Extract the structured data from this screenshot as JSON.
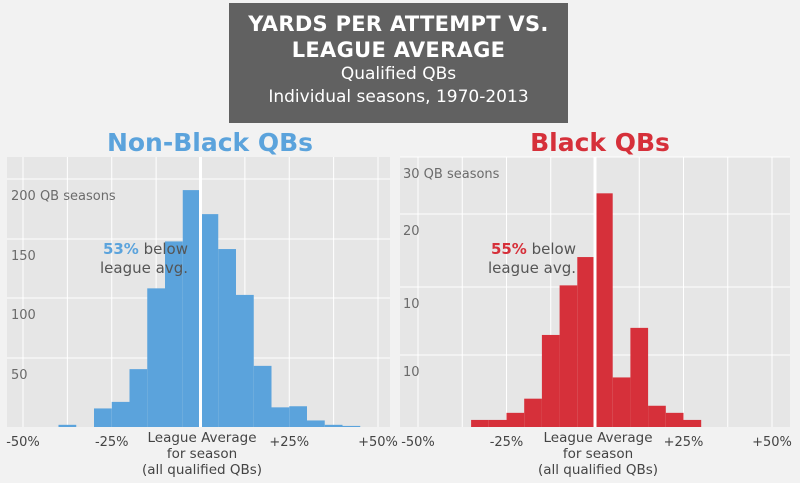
{
  "title": {
    "line1": "YARDS PER ATTEMPT VS.",
    "line2": "LEAGUE AVERAGE",
    "subtitle1": "Qualified QBs",
    "subtitle2": "Individual seasons, 1970-2013"
  },
  "center_label": {
    "line1": "League Average",
    "line2": "for season",
    "line3": "(all qualified QBs)"
  },
  "colors": {
    "blue": "#5ba3dc",
    "red": "#d6303a",
    "panel_bg": "#e6e6e6",
    "grid": "#ffffff"
  },
  "chart_data": [
    {
      "type": "bar",
      "title": "Non-Black QBs",
      "color": "#5ba3dc",
      "annotation": {
        "pct": "53%",
        "text1": "below",
        "text2": "league avg."
      },
      "xlim": [
        -50,
        50
      ],
      "x_ticks": [
        "-50%",
        "-25%",
        "+25%",
        "+50%"
      ],
      "y_ticks": [
        "200 QB seasons",
        "150",
        "100",
        "50"
      ],
      "bin_width": 5,
      "bins": [
        -40,
        -35,
        -30,
        -25,
        -20,
        -15,
        -10,
        -5,
        0,
        5,
        10,
        15,
        20,
        25,
        30,
        35,
        40
      ],
      "values": [
        2,
        0,
        17,
        23,
        53,
        127,
        170,
        217,
        195,
        163,
        121,
        56,
        18,
        19,
        6,
        2,
        1
      ],
      "ylim": [
        0,
        240
      ]
    },
    {
      "type": "bar",
      "title": "Black QBs",
      "color": "#d6303a",
      "annotation": {
        "pct": "55%",
        "text1": "below",
        "text2": "league avg."
      },
      "xlim": [
        -50,
        50
      ],
      "x_ticks": [
        "-50%",
        "-25%",
        "+25%",
        "+50%"
      ],
      "y_ticks": [
        "30 QB seasons",
        "20",
        "10",
        "10"
      ],
      "bin_width": 5,
      "bins": [
        -35,
        -30,
        -25,
        -20,
        -15,
        -10,
        -5,
        0,
        5,
        10,
        15,
        20,
        25
      ],
      "values": [
        1,
        1,
        2,
        4,
        13,
        20,
        24,
        33,
        7,
        14,
        3,
        2,
        1
      ],
      "ylim": [
        0,
        37
      ]
    }
  ]
}
